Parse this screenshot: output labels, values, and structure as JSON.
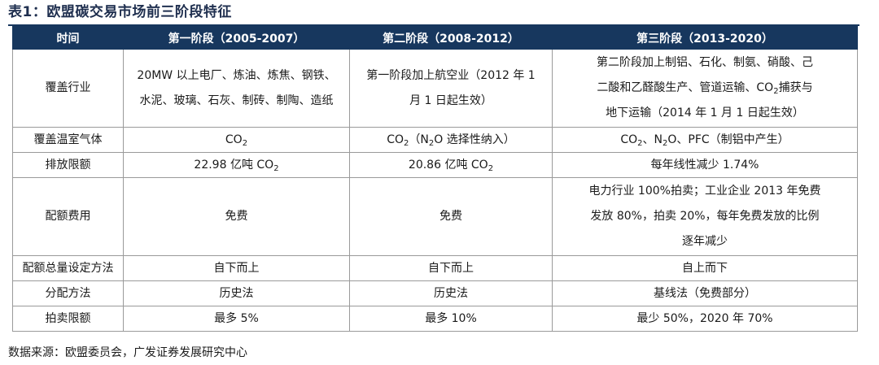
{
  "title": "表1：欧盟碳交易市场前三阶段特征",
  "headers": [
    "时间",
    "第一阶段（2005-2007）",
    "第二阶段（2008-2012）",
    "第三阶段（2013-2020）"
  ],
  "rows": {
    "coverage": {
      "label": "覆盖行业",
      "p1": [
        "20MW 以上电厂、炼油、炼焦、钢铁、",
        "水泥、玻璃、石灰、制砖、制陶、造纸"
      ],
      "p2": [
        "第一阶段加上航空业（2012 年 1",
        "月 1 日起生效）"
      ],
      "p3_line1": "第二阶段加上制铝、石化、制氨、硝酸、己",
      "p3_line2a": "二酸和乙醛酸生产、管道运输、CO",
      "p3_line2sub": "2",
      "p3_line2b": "捕获与",
      "p3_line3": "地下运输（2014 年 1 月 1 日起生效）"
    },
    "gases": {
      "label": "覆盖温室气体",
      "p1a": "CO",
      "p1sub": "2",
      "p2a": "CO",
      "p2sub": "2",
      "p2b": "（N",
      "p2sub2": "2",
      "p2c": "O 选择性纳入）",
      "p3a": "CO",
      "p3sub": "2",
      "p3b": "、N",
      "p3sub2": "2",
      "p3c": "O、PFC（制铝中产生）"
    },
    "cap": {
      "label": "排放限额",
      "p1a": "22.98 亿吨 CO",
      "p1sub": "2",
      "p2a": "20.86 亿吨 CO",
      "p2sub": "2",
      "p3": "每年线性减少 1.74%"
    },
    "fee": {
      "label": "配额费用",
      "p1": "免费",
      "p2": "免费",
      "p3": [
        "电力行业 100%拍卖；工业企业 2013 年免费",
        "发放 80%，拍卖 20%，每年免费发放的比例",
        "逐年减少"
      ]
    },
    "setting": {
      "label": "配额总量设定方法",
      "p1": "自下而上",
      "p2": "自下而上",
      "p3": "自上而下"
    },
    "allocation": {
      "label": "分配方法",
      "p1": "历史法",
      "p2": "历史法",
      "p3": "基线法（免费部分）"
    },
    "auction": {
      "label": "拍卖限额",
      "p1": "最多 5%",
      "p2": "最多 10%",
      "p3": "最少 50%，2020 年 70%"
    }
  },
  "source": "数据来源：欧盟委员会，广发证券发展研究中心",
  "colors": {
    "header_bg": "#17375e",
    "header_text": "#ffffff",
    "border": "#9a9a9a"
  }
}
